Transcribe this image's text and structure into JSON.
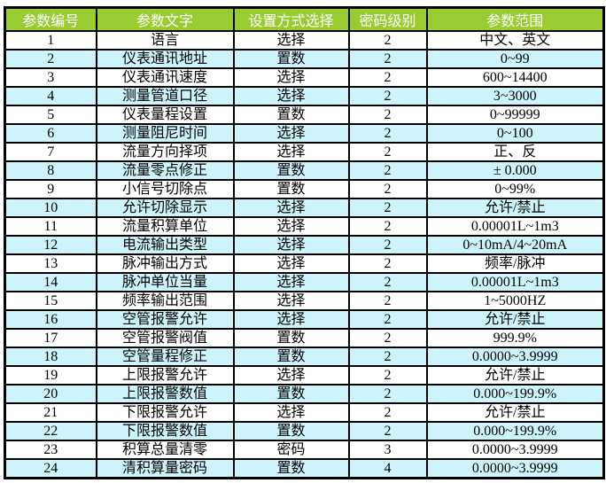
{
  "table": {
    "headers": [
      "参数编号",
      "参数文字",
      "设置方式选择",
      "密码级别",
      "参数范围"
    ],
    "rows": [
      [
        "1",
        "语言",
        "选择",
        "2",
        "中文、英文"
      ],
      [
        "2",
        "仪表通讯地址",
        "置数",
        "2",
        "0~99"
      ],
      [
        "3",
        "仪表通讯速度",
        "选择",
        "2",
        "600~14400"
      ],
      [
        "4",
        "测量管道口径",
        "选择",
        "2",
        "3~3000"
      ],
      [
        "5",
        "仪表量程设置",
        "置数",
        "2",
        "0~99999"
      ],
      [
        "6",
        "测量阻尼时间",
        "选择",
        "2",
        "0~100"
      ],
      [
        "7",
        "流量方向择项",
        "选择",
        "2",
        "正、反"
      ],
      [
        "8",
        "流量零点修正",
        "置数",
        "2",
        "± 0.000"
      ],
      [
        "9",
        "小信号切除点",
        "置数",
        "2",
        "0~99%"
      ],
      [
        "10",
        "允许切除显示",
        "选择",
        "2",
        "允许/禁止"
      ],
      [
        "11",
        "流量积算单位",
        "选择",
        "2",
        "0.00001L~1m3"
      ],
      [
        "12",
        "电流输出类型",
        "选择",
        "2",
        "0~10mA/4~20mA"
      ],
      [
        "13",
        "脉冲输出方式",
        "选择",
        "2",
        "频率/脉冲"
      ],
      [
        "14",
        "脉冲单位当量",
        "选择",
        "2",
        "0.00001L~1m3"
      ],
      [
        "15",
        "频率输出范围",
        "选择",
        "2",
        "1~5000HZ"
      ],
      [
        "16",
        "空管报警允许",
        "选择",
        "2",
        "允许/禁止"
      ],
      [
        "17",
        "空管报警阀值",
        "置数",
        "2",
        "999.9%"
      ],
      [
        "18",
        "空管量程修正",
        "置数",
        "2",
        "0.0000~3.9999"
      ],
      [
        "19",
        "上限报警允许",
        "选择",
        "2",
        "允许/禁止"
      ],
      [
        "20",
        "上限报警数值",
        "置数",
        "2",
        "0.000~199.9%"
      ],
      [
        "21",
        "下限报警允许",
        "选择",
        "2",
        "允许/禁止"
      ],
      [
        "22",
        "下限报警数值",
        "置数",
        "2",
        "0.000~199.9%"
      ],
      [
        "23",
        "积算总量清零",
        "密码",
        "3",
        "0.0000~3.9999"
      ],
      [
        "24",
        "清积算量密码",
        "置数",
        "4",
        "0.0000~3.9999"
      ]
    ]
  },
  "colors": {
    "header_bg": "#99cc33",
    "header_text": "#ffffff",
    "row_alt_bg": "#cdf3fb",
    "row_bg": "#ffffff",
    "grid_border": "#000000"
  }
}
